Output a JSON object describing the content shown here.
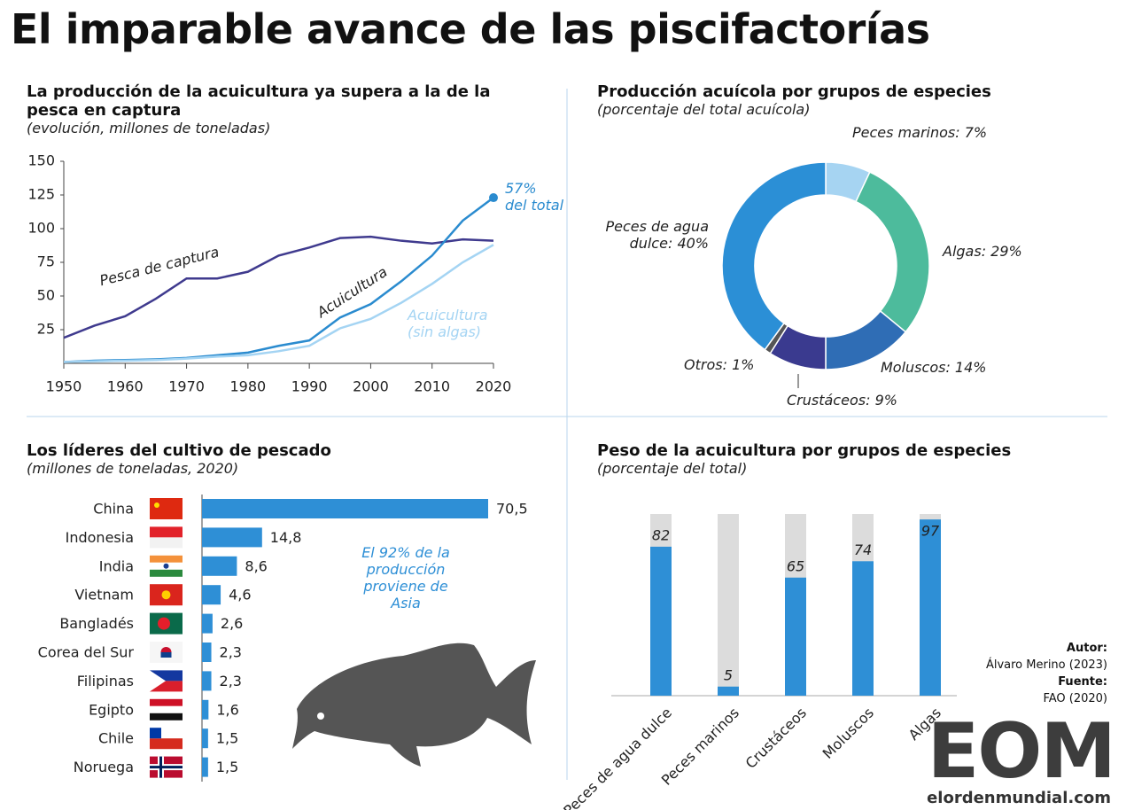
{
  "title": "El imparable avance de las piscifactorías",
  "chart_data": [
    {
      "type": "line",
      "title": "La producción de la acuicultura ya supera a la de la pesca en captura",
      "subtitle": "(evolución, millones de toneladas)",
      "x": [
        1950,
        1955,
        1960,
        1965,
        1970,
        1975,
        1980,
        1985,
        1990,
        1995,
        2000,
        2005,
        2010,
        2015,
        2020
      ],
      "series": [
        {
          "name": "Pesca de captura",
          "color": "#3f3a8e",
          "values": [
            19,
            28,
            35,
            48,
            63,
            63,
            68,
            80,
            86,
            93,
            94,
            91,
            89,
            92,
            91
          ]
        },
        {
          "name": "Acuicultura",
          "color": "#2a8bcf",
          "values": [
            1,
            2,
            2.5,
            3,
            4,
            6,
            8,
            13,
            17,
            34,
            44,
            61,
            80,
            106,
            123
          ]
        },
        {
          "name": "Acuicultura (sin algas)",
          "color": "#a4d4f3",
          "values": [
            1,
            1.5,
            2,
            2.5,
            3.5,
            5,
            6,
            9,
            13,
            26,
            33,
            45,
            59,
            75,
            88
          ]
        }
      ],
      "annotation": [
        "57%",
        "del total"
      ],
      "xlim": [
        1950,
        2020
      ],
      "xticks": [
        1950,
        1960,
        1970,
        1980,
        1990,
        2000,
        2010,
        2020
      ],
      "ylim": [
        0,
        150
      ],
      "yticks": [
        25,
        50,
        75,
        100,
        125,
        150
      ]
    },
    {
      "type": "pie",
      "title": "Producción acuícola por grupos de especies",
      "subtitle": "(porcentaje del total acuícola)",
      "categories": [
        "Peces marinos:",
        "Algas:",
        "Moluscos:",
        "Crustáceos:",
        "Otros:",
        "Peces de agua dulce:"
      ],
      "values": [
        7,
        29,
        14,
        9,
        1,
        40
      ],
      "value_labels": [
        "7%",
        "29%",
        "14%",
        "9%",
        "1%",
        "40%"
      ],
      "colors": [
        "#a6d4f2",
        "#4dbb9c",
        "#2f6db5",
        "#3a3a8f",
        "#555555",
        "#2b8fd6"
      ]
    },
    {
      "type": "hbar",
      "title": "Los líderes del cultivo de pescado",
      "subtitle": "(millones de toneladas, 2020)",
      "categories": [
        "China",
        "Indonesia",
        "India",
        "Vietnam",
        "Bangladés",
        "Corea del Sur",
        "Filipinas",
        "Egipto",
        "Chile",
        "Noruega"
      ],
      "values": [
        70.5,
        14.8,
        8.6,
        4.6,
        2.6,
        2.3,
        2.3,
        1.6,
        1.5,
        1.5
      ],
      "value_labels": [
        "70,5",
        "14,8",
        "8,6",
        "4,6",
        "2,6",
        "2,3",
        "2,3",
        "1,6",
        "1,5",
        "1,5"
      ],
      "color": "#2e8fd6",
      "annotation": "El 92% de la producción proviene de Asia"
    },
    {
      "type": "stacked100",
      "title": "Peso de la acuicultura por grupos de especies",
      "subtitle": "(porcentaje del total)",
      "categories": [
        "Peces de agua dulce",
        "Peces marinos",
        "Crustáceos",
        "Moluscos",
        "Algas"
      ],
      "values": [
        82,
        5,
        65,
        74,
        97
      ],
      "color": "#2e8fd6",
      "ylim": [
        0,
        100
      ]
    }
  ],
  "credits": {
    "author_label": "Autor:",
    "author": "Álvaro Merino (2023)",
    "source_label": "Fuente:",
    "source": "FAO (2020)",
    "logo": "EOM",
    "site": "elordenmundial.com"
  }
}
